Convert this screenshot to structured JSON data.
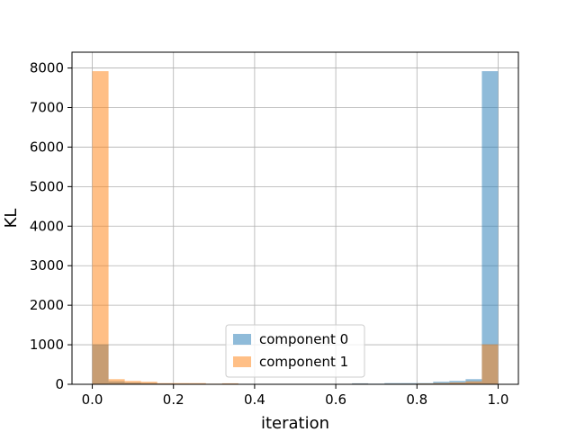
{
  "chart_data": {
    "type": "bar",
    "histogram": true,
    "xlabel": "iteration",
    "ylabel": "KL",
    "xlim": [
      -0.05,
      1.05
    ],
    "ylim": [
      0,
      8400
    ],
    "xticks": [
      0.0,
      0.2,
      0.4,
      0.6,
      0.8,
      1.0
    ],
    "xtick_labels": [
      "0.0",
      "0.2",
      "0.4",
      "0.6",
      "0.8",
      "1.0"
    ],
    "yticks": [
      0,
      1000,
      2000,
      3000,
      4000,
      5000,
      6000,
      7000,
      8000
    ],
    "ytick_labels": [
      "0",
      "1000",
      "2000",
      "3000",
      "4000",
      "5000",
      "6000",
      "7000",
      "8000"
    ],
    "grid": true,
    "legend_position": "bottom-center",
    "bin_start": 0.0,
    "bin_width": 0.04,
    "series": [
      {
        "name": "component 0",
        "color": "#1f77b4",
        "alpha": 0.5,
        "values": [
          1010,
          75,
          45,
          30,
          20,
          15,
          15,
          10,
          15,
          5,
          5,
          5,
          5,
          5,
          5,
          5,
          25,
          15,
          30,
          30,
          30,
          65,
          85,
          130,
          7920
        ]
      },
      {
        "name": "component 1",
        "color": "#ff7f0e",
        "alpha": 0.5,
        "values": [
          7920,
          130,
          85,
          65,
          30,
          30,
          30,
          15,
          25,
          5,
          5,
          5,
          5,
          5,
          5,
          5,
          15,
          10,
          15,
          15,
          20,
          30,
          45,
          75,
          1010
        ]
      }
    ]
  }
}
